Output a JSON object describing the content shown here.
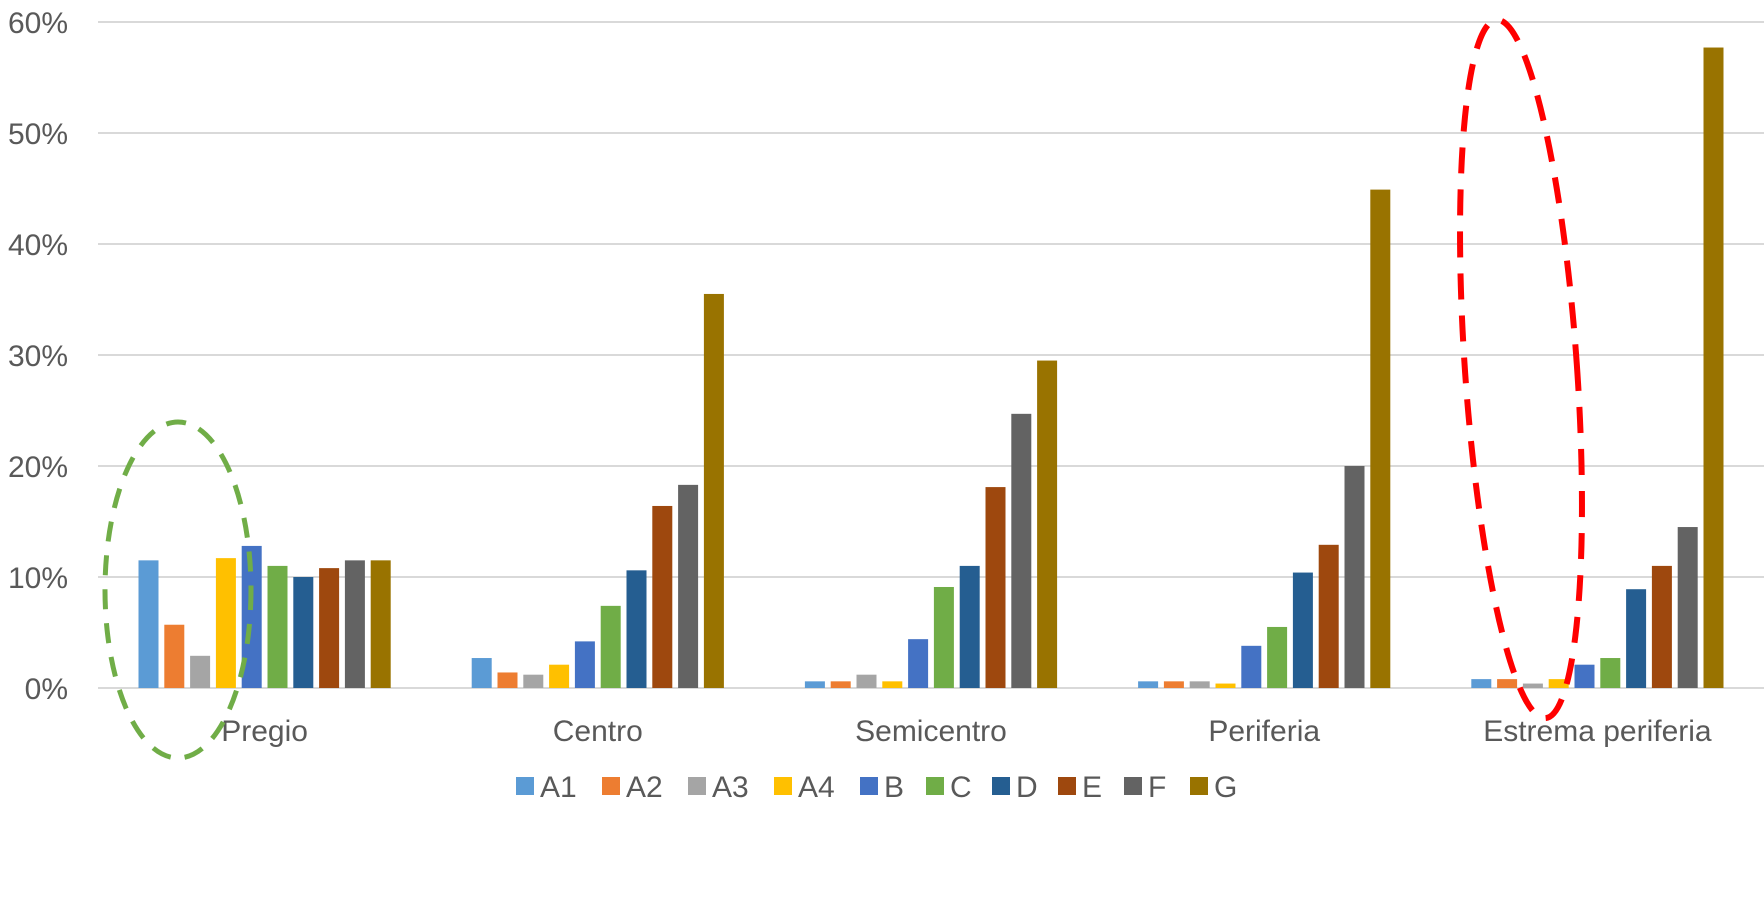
{
  "chart_data": {
    "type": "bar",
    "categories": [
      "Pregio",
      "Centro",
      "Semicentro",
      "Periferia",
      "Estrema periferia"
    ],
    "y_ticks": [
      "0%",
      "10%",
      "20%",
      "30%",
      "40%",
      "50%",
      "60%"
    ],
    "ylim": [
      0,
      60
    ],
    "y_unit": "%",
    "grid": true,
    "legend_position": "bottom",
    "series": [
      {
        "name": "A1",
        "color": "#5B9BD5",
        "values": [
          11.5,
          2.7,
          0.6,
          0.6,
          0.8
        ]
      },
      {
        "name": "A2",
        "color": "#ED7D31",
        "values": [
          5.7,
          1.4,
          0.6,
          0.6,
          0.8
        ]
      },
      {
        "name": "A3",
        "color": "#A5A5A5",
        "values": [
          2.9,
          1.2,
          1.2,
          0.6,
          0.4
        ]
      },
      {
        "name": "A4",
        "color": "#FFC000",
        "values": [
          11.7,
          2.1,
          0.6,
          0.4,
          0.8
        ]
      },
      {
        "name": "B",
        "color": "#4472C4",
        "values": [
          12.8,
          4.2,
          4.4,
          3.8,
          2.1
        ]
      },
      {
        "name": "C",
        "color": "#70AD47",
        "values": [
          11.0,
          7.4,
          9.1,
          5.5,
          2.7
        ]
      },
      {
        "name": "D",
        "color": "#255E91",
        "values": [
          10.0,
          10.6,
          11.0,
          10.4,
          8.9
        ]
      },
      {
        "name": "E",
        "color": "#9E480E",
        "values": [
          10.8,
          16.4,
          18.1,
          12.9,
          11.0
        ]
      },
      {
        "name": "F",
        "color": "#636363",
        "values": [
          11.5,
          18.3,
          24.7,
          20.0,
          14.5
        ]
      },
      {
        "name": "G",
        "color": "#997300",
        "values": [
          11.5,
          35.5,
          29.5,
          44.9,
          57.7
        ]
      }
    ],
    "annotations": [
      {
        "shape": "dashed-ellipse",
        "color": "#70AD47",
        "target_category": "Pregio"
      },
      {
        "shape": "dashed-ellipse",
        "color": "#FF0000",
        "target_category": "Estrema periferia"
      }
    ]
  }
}
